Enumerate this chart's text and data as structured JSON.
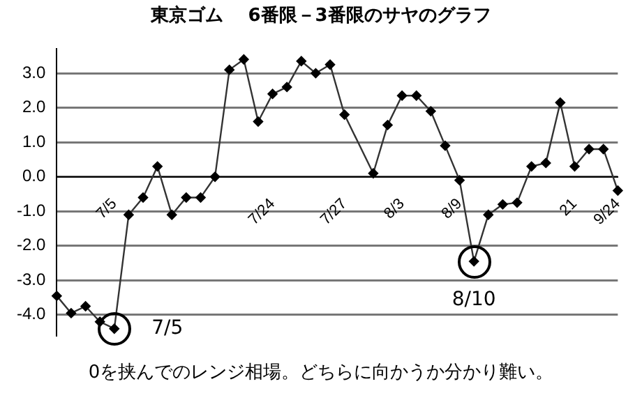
{
  "chart_data": {
    "type": "line",
    "title": "東京ゴム　 6番限－3番限のサヤのグラフ",
    "categories": [
      null,
      null,
      null,
      null,
      "7/5",
      null,
      null,
      null,
      null,
      null,
      null,
      null,
      null,
      null,
      null,
      "7/24",
      null,
      null,
      null,
      null,
      "7/27",
      null,
      null,
      null,
      "8/3",
      null,
      null,
      null,
      "8/9",
      null,
      null,
      null,
      null,
      null,
      null,
      null,
      "21",
      null,
      null,
      "9/24"
    ],
    "series": [
      {
        "color": "#333333",
        "values": [
          -3.45,
          -3.95,
          -3.75,
          -4.2,
          -4.4,
          -1.1,
          -0.6,
          0.3,
          -1.1,
          -0.6,
          -0.6,
          0.0,
          3.1,
          3.4,
          1.6,
          2.4,
          2.6,
          3.35,
          3.0,
          3.25,
          1.8,
          null,
          0.1,
          1.5,
          2.35,
          2.35,
          1.9,
          0.9,
          -0.1,
          -2.45,
          -1.1,
          -0.8,
          -0.75,
          0.3,
          0.4,
          2.15,
          0.3,
          0.8,
          0.8,
          -0.4
        ]
      }
    ],
    "ylim": [
      -4.6,
      3.7
    ],
    "yticks": [
      {
        "value": -4,
        "label": "-4.0"
      },
      {
        "value": -3,
        "label": "-3.0"
      },
      {
        "value": -2,
        "label": "-2.0"
      },
      {
        "value": -1,
        "label": "-1.0"
      },
      {
        "value": 0,
        "label": "0.0"
      },
      {
        "value": 1,
        "label": "1.0"
      },
      {
        "value": 2,
        "label": "2.0"
      },
      {
        "value": 3,
        "label": "3.0"
      }
    ],
    "grid": "y",
    "marker": "diamond",
    "line_style": "solid",
    "annotations": [
      "7/5",
      "8/10",
      "0を挟んでのレンジ相場。どちらに向かうか分かり難い。"
    ]
  }
}
